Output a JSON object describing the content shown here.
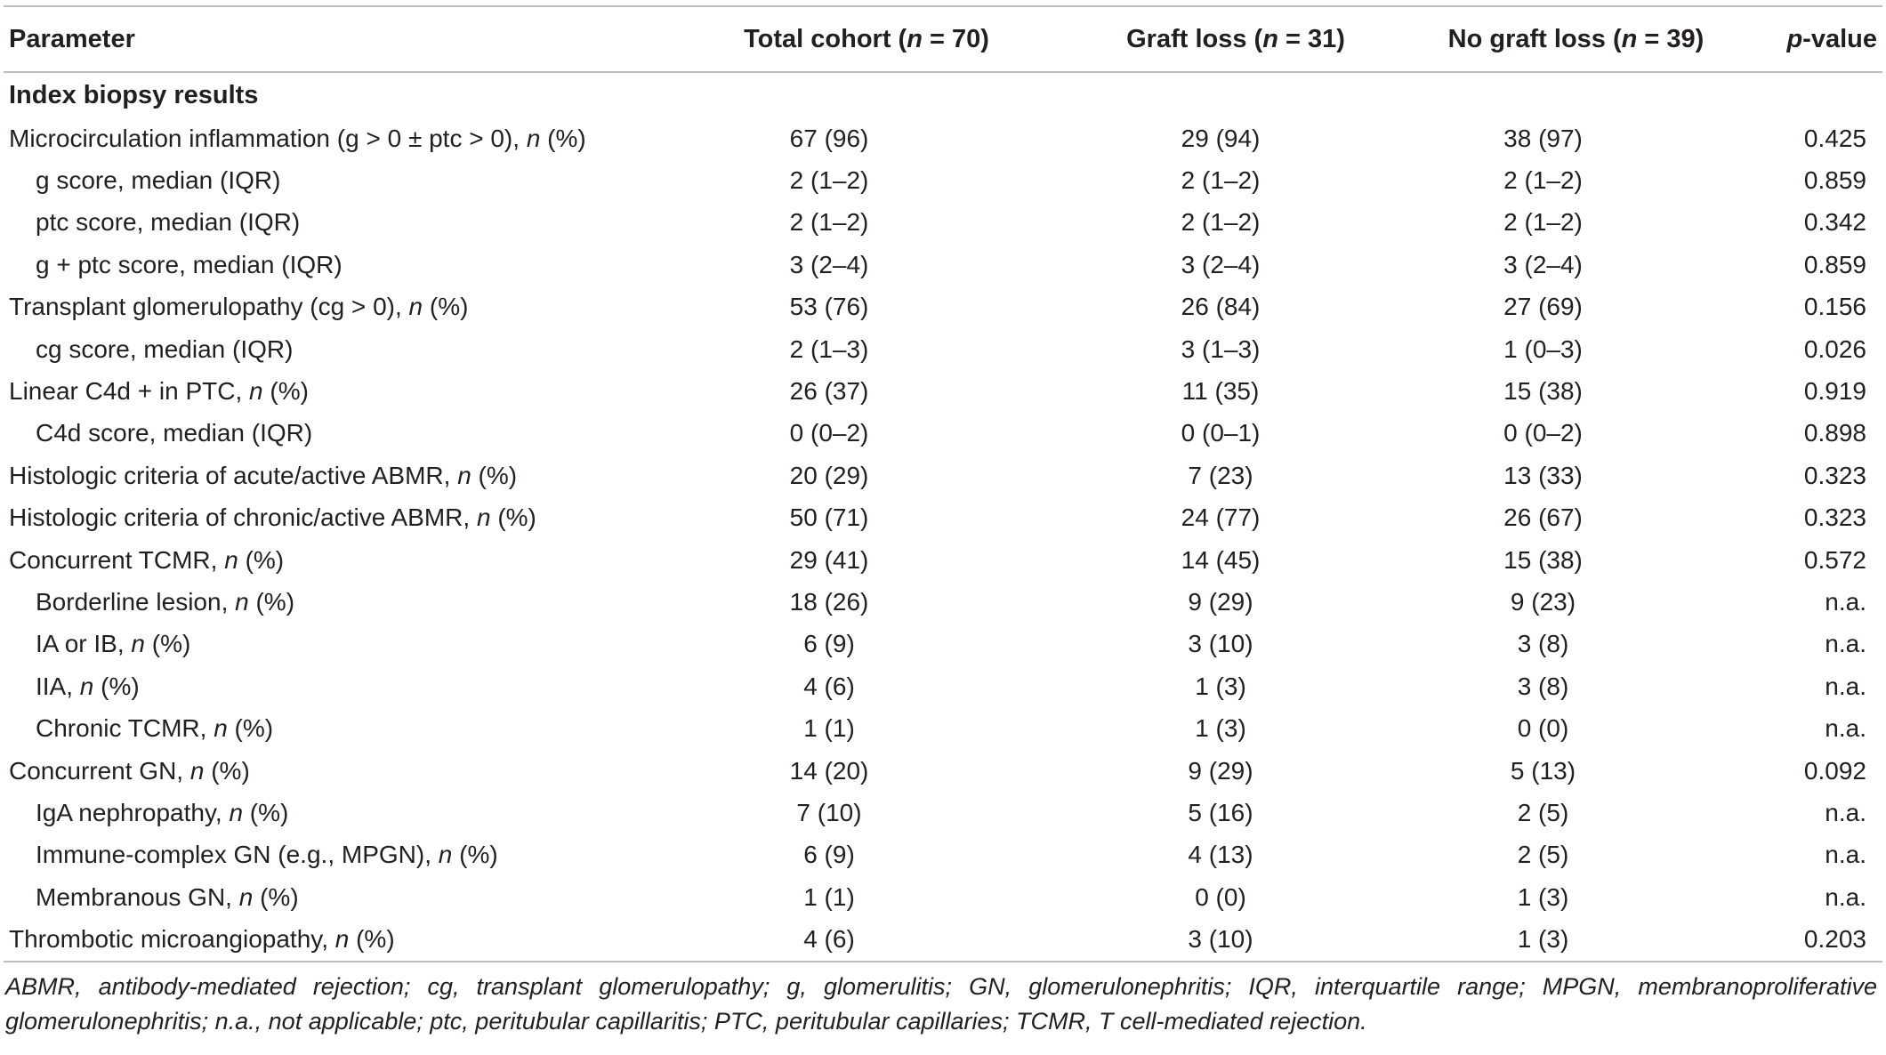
{
  "table": {
    "headers": {
      "parameter": "Parameter",
      "total": {
        "pre": "Total cohort (",
        "n": "n",
        "post": " = 70)"
      },
      "loss": {
        "pre": "Graft loss (",
        "n": "n",
        "post": " = 31)"
      },
      "noloss": {
        "pre": "No graft loss (",
        "n": "n",
        "post": " = 39)"
      },
      "pvalue": {
        "p": "p",
        "post": "-value"
      }
    },
    "section": "Index biopsy results",
    "rows": [
      {
        "label": "Microcirculation inflammation (g > 0 ± ptc > 0), ",
        "unit_i": "n",
        "unit_r": " (%)",
        "indent": false,
        "total": "67 (96)",
        "loss": "29 (94)",
        "noloss": "38 (97)",
        "p": "0.425"
      },
      {
        "label": "g score, median (IQR)",
        "unit_i": "",
        "unit_r": "",
        "indent": true,
        "total": "2 (1–2)",
        "loss": "2 (1–2)",
        "noloss": "2 (1–2)",
        "p": "0.859"
      },
      {
        "label": "ptc score, median (IQR)",
        "unit_i": "",
        "unit_r": "",
        "indent": true,
        "total": "2 (1–2)",
        "loss": "2 (1–2)",
        "noloss": "2 (1–2)",
        "p": "0.342"
      },
      {
        "label": "g + ptc score, median (IQR)",
        "unit_i": "",
        "unit_r": "",
        "indent": true,
        "total": "3 (2–4)",
        "loss": "3 (2–4)",
        "noloss": "3 (2–4)",
        "p": "0.859"
      },
      {
        "label": "Transplant glomerulopathy (cg > 0), ",
        "unit_i": "n",
        "unit_r": " (%)",
        "indent": false,
        "total": "53 (76)",
        "loss": "26 (84)",
        "noloss": "27 (69)",
        "p": "0.156"
      },
      {
        "label": "cg score, median (IQR)",
        "unit_i": "",
        "unit_r": "",
        "indent": true,
        "total": "2 (1–3)",
        "loss": "3 (1–3)",
        "noloss": "1 (0–3)",
        "p": "0.026"
      },
      {
        "label": "Linear C4d + in PTC, ",
        "unit_i": "n",
        "unit_r": " (%)",
        "indent": false,
        "total": "26 (37)",
        "loss": "11 (35)",
        "noloss": "15 (38)",
        "p": "0.919"
      },
      {
        "label": "C4d score, median (IQR)",
        "unit_i": "",
        "unit_r": "",
        "indent": true,
        "total": "0 (0–2)",
        "loss": "0 (0–1)",
        "noloss": "0 (0–2)",
        "p": "0.898"
      },
      {
        "label": "Histologic criteria of acute/active ABMR, ",
        "unit_i": "n",
        "unit_r": " (%)",
        "indent": false,
        "total": "20 (29)",
        "loss": "7 (23)",
        "noloss": "13 (33)",
        "p": "0.323"
      },
      {
        "label": "Histologic criteria of chronic/active ABMR, ",
        "unit_i": "n",
        "unit_r": " (%)",
        "indent": false,
        "total": "50 (71)",
        "loss": "24 (77)",
        "noloss": "26 (67)",
        "p": "0.323"
      },
      {
        "label": "Concurrent TCMR, ",
        "unit_i": "n",
        "unit_r": " (%)",
        "indent": false,
        "total": "29 (41)",
        "loss": "14 (45)",
        "noloss": "15 (38)",
        "p": "0.572"
      },
      {
        "label": "Borderline lesion, ",
        "unit_i": "n",
        "unit_r": " (%)",
        "indent": true,
        "total": "18 (26)",
        "loss": "9 (29)",
        "noloss": "9 (23)",
        "p": "n.a."
      },
      {
        "label": "IA or IB, ",
        "unit_i": "n",
        "unit_r": " (%)",
        "indent": true,
        "total": "6 (9)",
        "loss": "3 (10)",
        "noloss": "3 (8)",
        "p": "n.a."
      },
      {
        "label": "IIA, ",
        "unit_i": "n",
        "unit_r": " (%)",
        "indent": true,
        "total": "4 (6)",
        "loss": "1 (3)",
        "noloss": "3 (8)",
        "p": "n.a."
      },
      {
        "label": "Chronic TCMR, ",
        "unit_i": "n",
        "unit_r": " (%)",
        "indent": true,
        "total": "1 (1)",
        "loss": "1 (3)",
        "noloss": "0 (0)",
        "p": "n.a."
      },
      {
        "label": "Concurrent GN, ",
        "unit_i": "n",
        "unit_r": " (%)",
        "indent": false,
        "total": "14 (20)",
        "loss": "9 (29)",
        "noloss": "5 (13)",
        "p": "0.092"
      },
      {
        "label": "IgA nephropathy, ",
        "unit_i": "n",
        "unit_r": " (%)",
        "indent": true,
        "total": "7 (10)",
        "loss": "5 (16)",
        "noloss": "2 (5)",
        "p": "n.a."
      },
      {
        "label": "Immune-complex GN (e.g., MPGN), ",
        "unit_i": "n",
        "unit_r": " (%)",
        "indent": true,
        "total": "6 (9)",
        "loss": "4 (13)",
        "noloss": "2 (5)",
        "p": "n.a."
      },
      {
        "label": "Membranous GN, ",
        "unit_i": "n",
        "unit_r": " (%)",
        "indent": true,
        "total": "1 (1)",
        "loss": "0 (0)",
        "noloss": "1 (3)",
        "p": "n.a."
      },
      {
        "label": "Thrombotic microangiopathy, ",
        "unit_i": "n",
        "unit_r": " (%)",
        "indent": false,
        "total": "4 (6)",
        "loss": "3 (10)",
        "noloss": "1 (3)",
        "p": "0.203"
      }
    ]
  },
  "footnote": "ABMR, antibody-mediated rejection; cg, transplant glomerulopathy; g, glomerulitis; GN, glomerulonephritis; IQR, interquartile range; MPGN, membranoproliferative glomerulonephritis; n.a., not applicable; ptc, peritubular capillaritis; PTC, peritubular capillaries; TCMR, T cell-mediated rejection."
}
